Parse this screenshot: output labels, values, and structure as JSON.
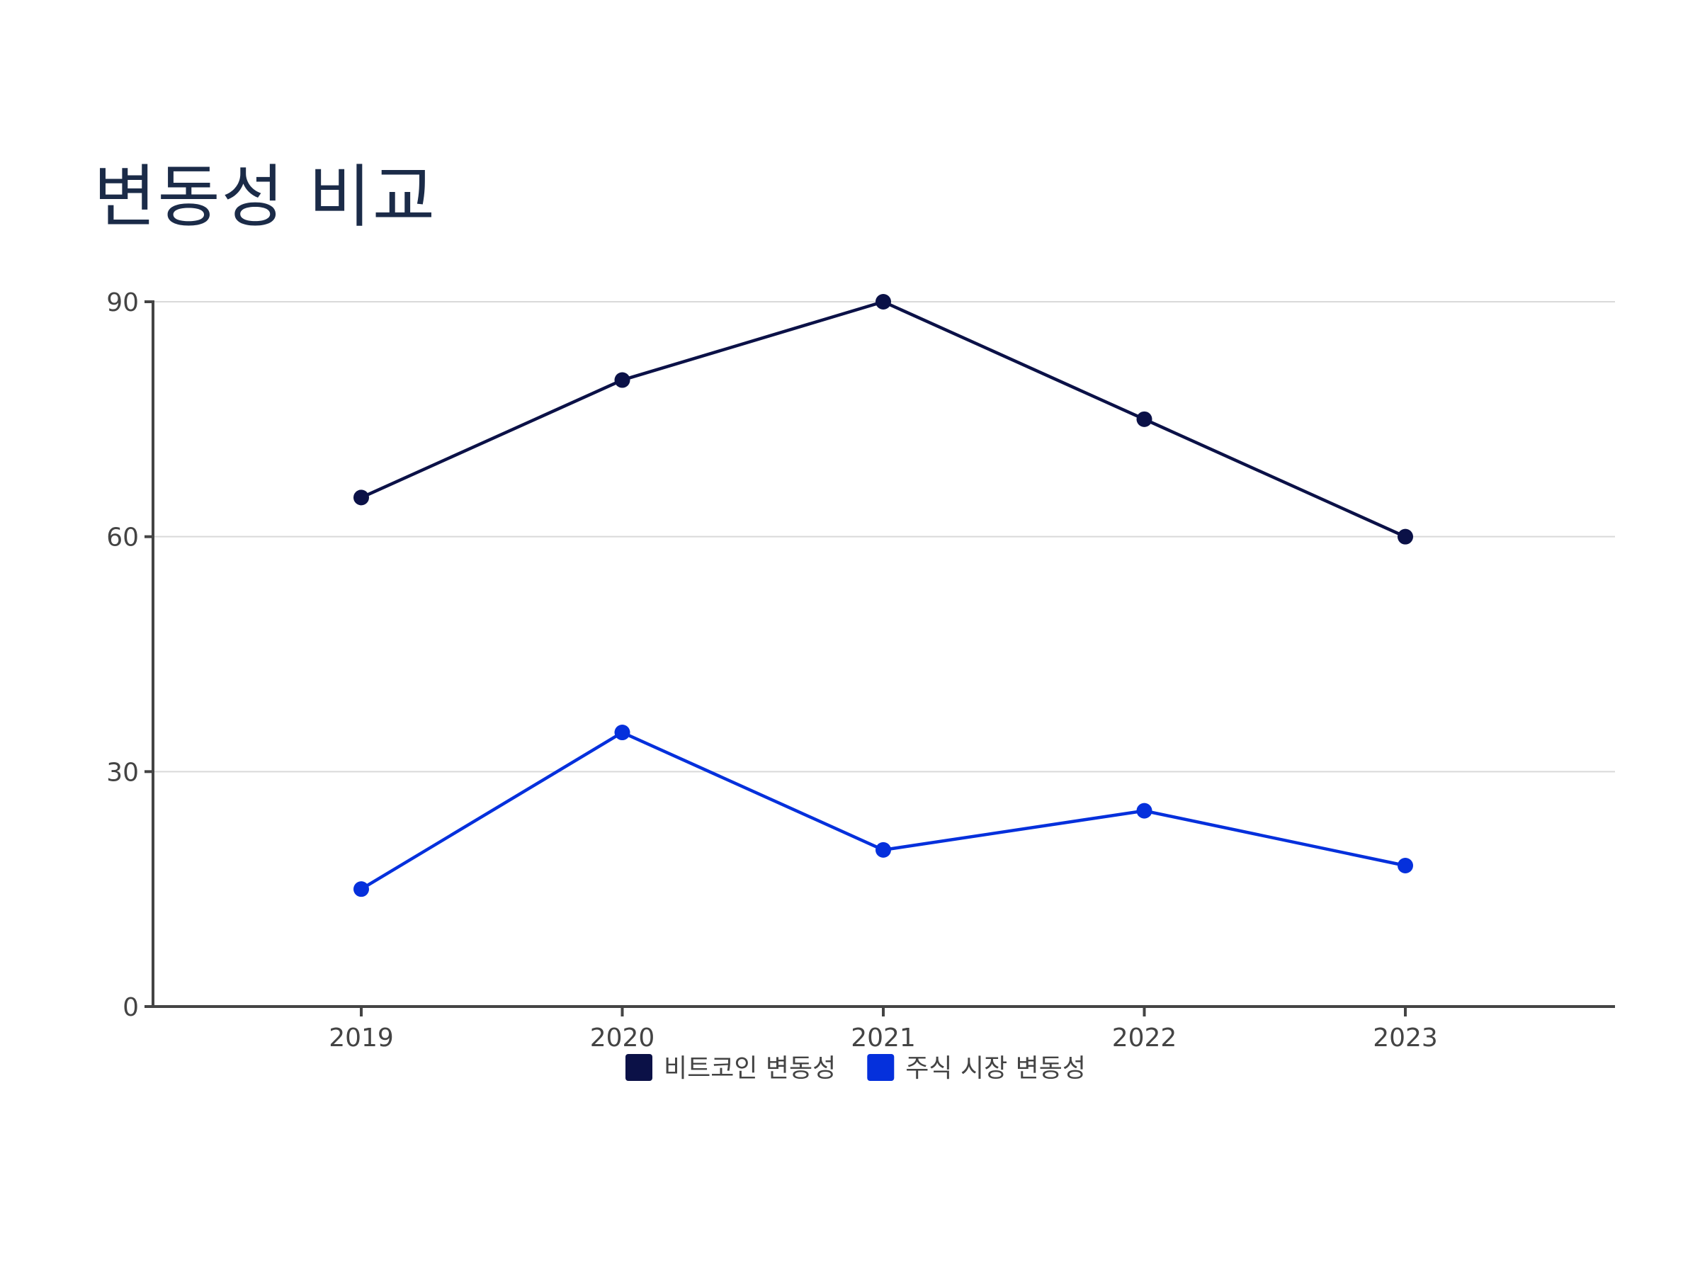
{
  "chart_data": {
    "type": "line",
    "title": "변동성 비교",
    "xlabel": "",
    "ylabel": "",
    "categories": [
      "2019",
      "2020",
      "2021",
      "2022",
      "2023"
    ],
    "ylim": [
      0,
      90
    ],
    "yticks": [
      0,
      30,
      60,
      90
    ],
    "grid": true,
    "legend_position": "bottom",
    "series": [
      {
        "name": "비트코인 변동성",
        "color": "#0b1147",
        "values": [
          65,
          80,
          90,
          75,
          60
        ]
      },
      {
        "name": "주식 시장 변동성",
        "color": "#0530dc",
        "values": [
          15,
          35,
          20,
          25,
          18
        ]
      }
    ]
  }
}
